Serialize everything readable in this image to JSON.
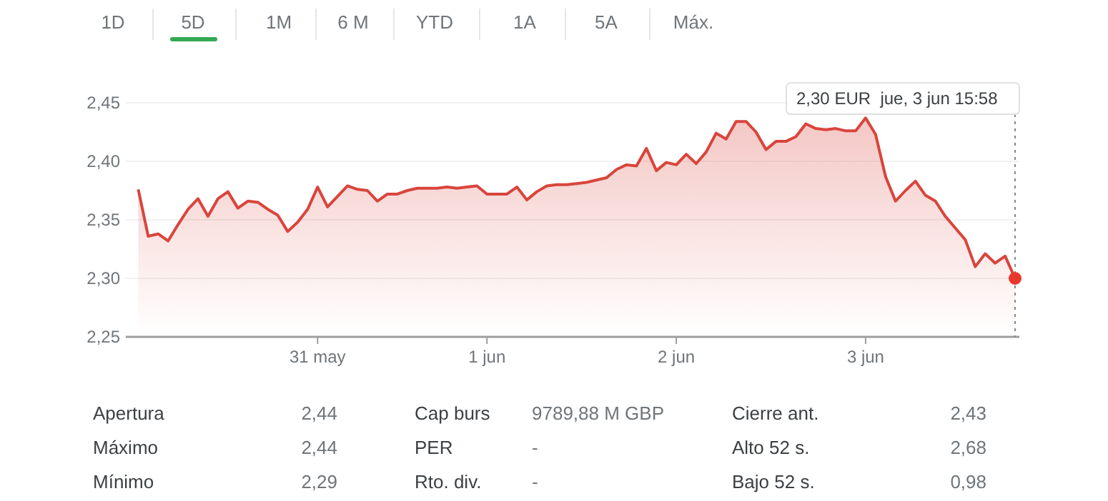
{
  "chart_data": {
    "type": "area",
    "ylim": [
      2.25,
      2.45
    ],
    "categories": [
      null,
      null,
      null,
      null,
      null,
      null,
      null,
      null,
      null,
      null,
      null,
      null,
      null,
      null,
      null,
      null,
      null,
      null,
      "31 may",
      null,
      null,
      null,
      null,
      null,
      null,
      null,
      null,
      null,
      null,
      null,
      null,
      null,
      null,
      null,
      null,
      "1 jun",
      null,
      null,
      null,
      null,
      null,
      null,
      null,
      null,
      null,
      null,
      null,
      null,
      null,
      null,
      null,
      null,
      null,
      null,
      "2 jun",
      null,
      null,
      null,
      null,
      null,
      null,
      null,
      null,
      null,
      null,
      null,
      null,
      null,
      null,
      null,
      null,
      null,
      null,
      "3 jun",
      null,
      null,
      null,
      null,
      null,
      null,
      null,
      null,
      null,
      null,
      null,
      null,
      null,
      null,
      null
    ],
    "yticks": [
      {
        "value": 2.25,
        "label": "2,25"
      },
      {
        "value": 2.3,
        "label": "2,30"
      },
      {
        "value": 2.35,
        "label": "2,35"
      },
      {
        "value": 2.4,
        "label": "2,40"
      },
      {
        "value": 2.45,
        "label": "2,45"
      }
    ],
    "grid": "y",
    "series": [
      {
        "color": "#d9453c",
        "values": [
          2.376,
          2.336,
          2.338,
          2.332,
          2.346,
          2.359,
          2.368,
          2.353,
          2.368,
          2.374,
          2.36,
          2.366,
          2.365,
          2.359,
          2.354,
          2.34,
          2.348,
          2.359,
          2.378,
          2.361,
          2.37,
          2.379,
          2.376,
          2.375,
          2.366,
          2.372,
          2.372,
          2.375,
          2.377,
          2.377,
          2.377,
          2.378,
          2.377,
          2.378,
          2.379,
          2.372,
          2.372,
          2.372,
          2.378,
          2.367,
          2.374,
          2.379,
          2.38,
          2.38,
          2.381,
          2.382,
          2.384,
          2.386,
          2.393,
          2.397,
          2.396,
          2.411,
          2.392,
          2.399,
          2.397,
          2.406,
          2.398,
          2.408,
          2.424,
          2.419,
          2.434,
          2.434,
          2.425,
          2.41,
          2.417,
          2.417,
          2.421,
          2.432,
          2.428,
          2.427,
          2.428,
          2.426,
          2.426,
          2.437,
          2.423,
          2.387,
          2.366,
          2.375,
          2.383,
          2.371,
          2.366,
          2.353,
          2.343,
          2.333,
          2.31,
          2.321,
          2.313,
          2.319,
          2.3
        ]
      },
      {
        "type": "scatter",
        "color": "#e8382c",
        "values": [
          null,
          null,
          null,
          null,
          null,
          null,
          null,
          null,
          null,
          null,
          null,
          null,
          null,
          null,
          null,
          null,
          null,
          null,
          null,
          null,
          null,
          null,
          null,
          null,
          null,
          null,
          null,
          null,
          null,
          null,
          null,
          null,
          null,
          null,
          null,
          null,
          null,
          null,
          null,
          null,
          null,
          null,
          null,
          null,
          null,
          null,
          null,
          null,
          null,
          null,
          null,
          null,
          null,
          null,
          null,
          null,
          null,
          null,
          null,
          null,
          null,
          null,
          null,
          null,
          null,
          null,
          null,
          null,
          null,
          null,
          null,
          null,
          null,
          null,
          null,
          null,
          null,
          null,
          null,
          null,
          null,
          null,
          null,
          null,
          null,
          null,
          null,
          null,
          2.3
        ]
      }
    ],
    "annotations": [
      "2,30 EUR  jue, 3 jun 15:58",
      "1D",
      "5D",
      "1M",
      "6 M",
      "YTD",
      "1A",
      "5A",
      "Máx.",
      "Apertura",
      "2,44",
      "Cap burs",
      "9789,88 M GBP",
      "Cierre ant.",
      "2,43",
      "Máximo",
      "2,44",
      "PER",
      "-",
      "Alto 52 s.",
      "2,68",
      "Mínimo",
      "2,29",
      "Rto. div.",
      "-",
      "Bajo 52 s.",
      "0,98"
    ]
  }
}
